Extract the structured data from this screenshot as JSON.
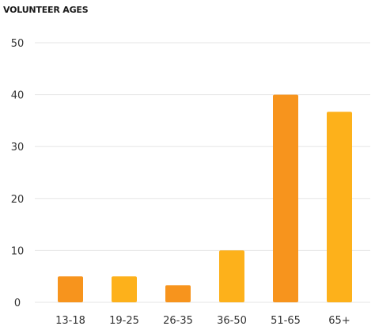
{
  "chart_data": {
    "type": "bar",
    "title": "VOLUNTEER AGES",
    "categories": [
      "13-18",
      "19-25",
      "26-35",
      "36-50",
      "51-65",
      "65+"
    ],
    "values": [
      5,
      5,
      3.3,
      10,
      40,
      36.7
    ],
    "xlabel": "",
    "ylabel": "",
    "ylim": [
      0,
      50
    ],
    "yticks": [
      0,
      10,
      20,
      30,
      40,
      50
    ],
    "grid": true,
    "bar_colors": [
      "#f7941d",
      "#fdb11b",
      "#f7941d",
      "#fdb11b",
      "#f7941d",
      "#fdb11b"
    ],
    "grid_color": "#e6e6e6"
  }
}
